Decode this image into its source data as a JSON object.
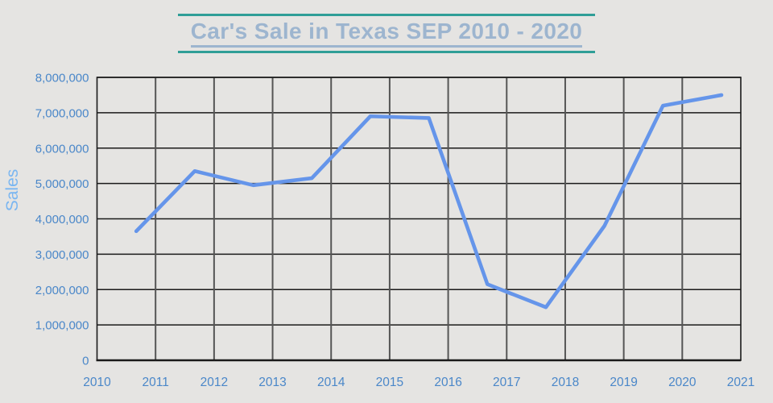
{
  "page": {
    "background": "#e5e4e2"
  },
  "title": {
    "text": "Car's Sale in Texas SEP 2010 - 2020",
    "color": "#9db5cf",
    "rule_color": "#2f9e97"
  },
  "chart_data": {
    "type": "line",
    "title": "Car's Sale in Texas SEP 2010 - 2020",
    "xlabel": "",
    "ylabel": "Sales",
    "xlim": [
      2010,
      2021
    ],
    "ylim": [
      0,
      8000000
    ],
    "grid": true,
    "legend": false,
    "x_ticks": [
      2010,
      2011,
      2012,
      2013,
      2014,
      2015,
      2016,
      2017,
      2018,
      2019,
      2020,
      2021
    ],
    "x_tick_labels": [
      "2010",
      "2011",
      "2012",
      "2013",
      "2014",
      "2015",
      "2016",
      "2017",
      "2018",
      "2019",
      "2020",
      "2021"
    ],
    "y_ticks": [
      0,
      1000000,
      2000000,
      3000000,
      4000000,
      5000000,
      6000000,
      7000000,
      8000000
    ],
    "y_tick_labels": [
      "0",
      "1,000,000",
      "2,000,000",
      "3,000,000",
      "4,000,000",
      "5,000,000",
      "6,000,000",
      "7,000,000",
      "8,000,000"
    ],
    "series": [
      {
        "name": "Sales",
        "x": [
          2010.67,
          2011.67,
          2012.67,
          2013.67,
          2014.67,
          2015.67,
          2016.67,
          2017.67,
          2018.67,
          2019.67,
          2020.67
        ],
        "values": [
          3650000,
          5350000,
          4950000,
          5150000,
          6900000,
          6850000,
          2150000,
          1500000,
          3800000,
          7200000,
          7500000
        ],
        "color": "#6595ea"
      }
    ],
    "colors": {
      "tick_label": "#4a87c9",
      "axis_title": "#7ab6f1",
      "grid_h": "#1a1a1a",
      "grid_v": "#555555",
      "border": "#1a1a1a"
    }
  }
}
